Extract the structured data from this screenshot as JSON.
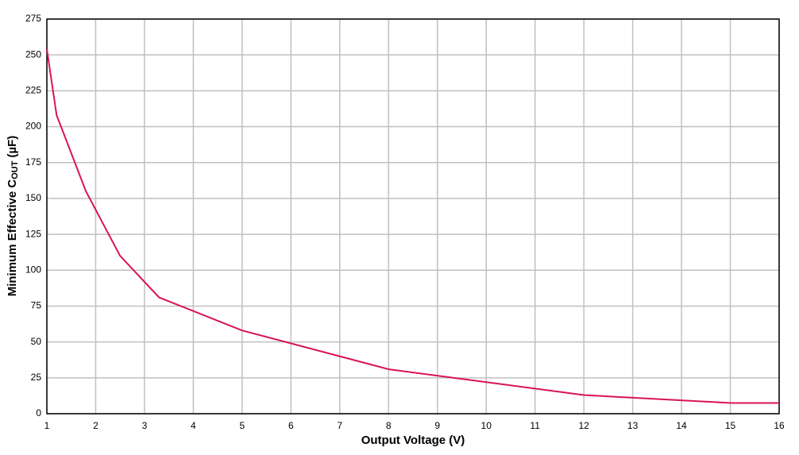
{
  "chart_data": {
    "type": "line",
    "xlabel": "Output Voltage (V)",
    "ylabel": {
      "text": "Minimum Effective C",
      "subscript": "OUT",
      "suffix": "(µF)"
    },
    "x": [
      1,
      1.2,
      1.8,
      2.5,
      3.3,
      5,
      8,
      12,
      15,
      16
    ],
    "series": [
      {
        "color": "#d8125b",
        "values": [
          254,
          208,
          155,
          110,
          81,
          58,
          31,
          13,
          7.5,
          7.5
        ]
      }
    ],
    "xlim": [
      1,
      16
    ],
    "xticks": [
      1,
      2,
      3,
      4,
      5,
      6,
      7,
      8,
      9,
      10,
      11,
      12,
      13,
      14,
      15,
      16
    ],
    "ylim": [
      0,
      275
    ],
    "yticks": [
      0,
      25,
      50,
      75,
      100,
      125,
      150,
      175,
      200,
      225,
      250,
      275
    ],
    "grid": true
  }
}
